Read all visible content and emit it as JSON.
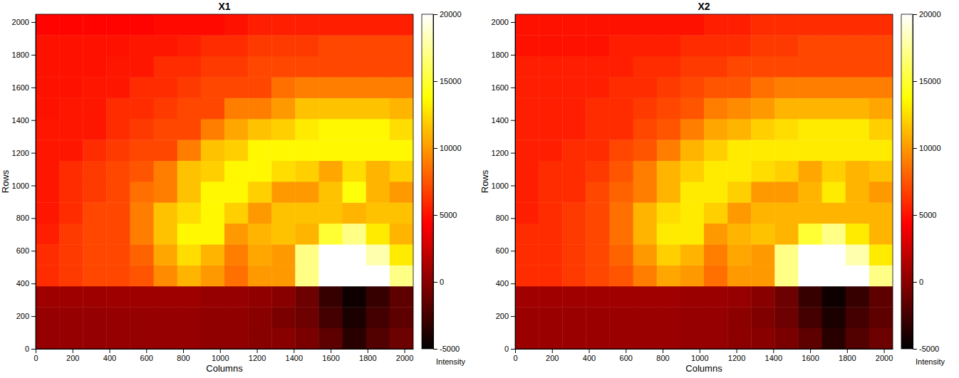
{
  "chart_data": [
    {
      "type": "heatmap",
      "title": "X1",
      "x_label": "Columns",
      "y_label": "Rows",
      "x": [
        0,
        128,
        256,
        384,
        512,
        640,
        768,
        896,
        1024,
        1152,
        1280,
        1408,
        1536,
        1664,
        1792,
        1920,
        2048
      ],
      "y": [
        0,
        128,
        256,
        384,
        512,
        640,
        768,
        896,
        1024,
        1152,
        1280,
        1408,
        1536,
        1664,
        1792,
        1920,
        2048
      ],
      "xlim": [
        0,
        2048
      ],
      "ylim": [
        0,
        2048
      ],
      "xticks": [
        0,
        200,
        400,
        600,
        800,
        1000,
        1200,
        1400,
        1600,
        1800,
        2000
      ],
      "yticks": [
        0,
        200,
        400,
        600,
        800,
        1000,
        1200,
        1400,
        1600,
        1800,
        2000
      ],
      "z": [
        [
          500,
          500,
          500,
          500,
          500,
          500,
          500,
          300,
          300,
          0,
          0,
          -500,
          -1500,
          -3500,
          -2000,
          -1000
        ],
        [
          500,
          500,
          500,
          500,
          500,
          500,
          500,
          300,
          300,
          0,
          -500,
          -1000,
          -2500,
          -4000,
          -2500,
          -1500
        ],
        [
          800,
          800,
          800,
          800,
          800,
          800,
          800,
          500,
          500,
          300,
          0,
          -1000,
          -3000,
          -4500,
          -3000,
          -1500
        ],
        [
          6000,
          6500,
          7000,
          7000,
          7500,
          9500,
          11000,
          10000,
          8500,
          10000,
          10000,
          17000,
          20000,
          20000,
          20000,
          17000
        ],
        [
          6000,
          6500,
          7000,
          7000,
          8000,
          10500,
          12500,
          11000,
          9000,
          10500,
          10000,
          17000,
          20000,
          20000,
          18000,
          13000
        ],
        [
          5500,
          6500,
          7000,
          7000,
          9000,
          11500,
          13500,
          13500,
          10000,
          11000,
          11500,
          11000,
          15000,
          17000,
          13000,
          11000
        ],
        [
          5200,
          6000,
          7000,
          7000,
          9000,
          11500,
          12500,
          13500,
          12000,
          10000,
          11500,
          11500,
          11500,
          11000,
          11500,
          11500
        ],
        [
          5200,
          6000,
          6500,
          7000,
          8500,
          9000,
          11500,
          13500,
          13500,
          12000,
          10000,
          10000,
          11500,
          14000,
          11000,
          10000
        ],
        [
          5200,
          6000,
          6500,
          7000,
          7500,
          9000,
          11500,
          12000,
          13500,
          13500,
          12500,
          12000,
          10500,
          12500,
          11000,
          12000
        ],
        [
          5200,
          5200,
          6000,
          6500,
          7000,
          7000,
          9000,
          11500,
          12000,
          13500,
          13500,
          13500,
          13500,
          13500,
          13500,
          13500
        ],
        [
          5200,
          5200,
          5200,
          6000,
          6500,
          7000,
          7000,
          9000,
          10500,
          11500,
          12000,
          13000,
          13500,
          13500,
          13500,
          12500
        ],
        [
          5000,
          5200,
          5200,
          6000,
          6000,
          6500,
          7000,
          7000,
          9000,
          9000,
          10000,
          11500,
          11500,
          11500,
          11500,
          11000
        ],
        [
          5000,
          5000,
          5200,
          5200,
          6000,
          6000,
          6500,
          7000,
          7000,
          7000,
          8500,
          9000,
          9000,
          9000,
          9000,
          9000
        ],
        [
          5000,
          5000,
          5000,
          5200,
          5200,
          6000,
          6000,
          6500,
          6500,
          7000,
          7000,
          7000,
          7000,
          7000,
          7000,
          7000
        ],
        [
          5000,
          5000,
          5000,
          5000,
          5200,
          5200,
          5500,
          6000,
          6000,
          6500,
          6500,
          6500,
          7000,
          7000,
          7000,
          7000
        ],
        [
          4500,
          4500,
          4500,
          4500,
          4500,
          4700,
          4700,
          4700,
          5000,
          5500,
          5500,
          5500,
          5500,
          5500,
          5500,
          5500
        ]
      ],
      "colorbar": {
        "label": "Intensity",
        "range": [
          -5000,
          20000
        ],
        "ticks": [
          -5000,
          0,
          5000,
          10000,
          15000,
          20000
        ]
      }
    },
    {
      "type": "heatmap",
      "title": "X2",
      "x_label": "Columns",
      "y_label": "Rows",
      "x": [
        0,
        128,
        256,
        384,
        512,
        640,
        768,
        896,
        1024,
        1152,
        1280,
        1408,
        1536,
        1664,
        1792,
        1920,
        2048
      ],
      "y": [
        0,
        128,
        256,
        384,
        512,
        640,
        768,
        896,
        1024,
        1152,
        1280,
        1408,
        1536,
        1664,
        1792,
        1920,
        2048
      ],
      "xlim": [
        0,
        2048
      ],
      "ylim": [
        0,
        2048
      ],
      "xticks": [
        0,
        200,
        400,
        600,
        800,
        1000,
        1200,
        1400,
        1600,
        1800,
        2000
      ],
      "yticks": [
        0,
        200,
        400,
        600,
        800,
        1000,
        1200,
        1400,
        1600,
        1800,
        2000
      ],
      "z": [
        [
          700,
          700,
          700,
          700,
          700,
          700,
          700,
          500,
          500,
          200,
          0,
          -500,
          -1500,
          -3500,
          -2000,
          -1000
        ],
        [
          700,
          700,
          700,
          700,
          700,
          700,
          700,
          500,
          500,
          200,
          -300,
          -1000,
          -2500,
          -4000,
          -2500,
          -1500
        ],
        [
          900,
          900,
          900,
          900,
          900,
          900,
          900,
          700,
          700,
          500,
          0,
          -1000,
          -3000,
          -4500,
          -3000,
          -1500
        ],
        [
          6000,
          6000,
          6500,
          7000,
          7500,
          9000,
          10500,
          10000,
          8500,
          10000,
          10000,
          17000,
          20000,
          20000,
          20000,
          17000
        ],
        [
          6000,
          6000,
          6500,
          7000,
          8000,
          10000,
          12000,
          11000,
          9000,
          10500,
          10000,
          17000,
          20000,
          20000,
          18000,
          13000
        ],
        [
          6000,
          6000,
          6500,
          7000,
          8500,
          11000,
          13000,
          13000,
          10000,
          11000,
          11500,
          11000,
          15000,
          17000,
          13000,
          11000
        ],
        [
          5500,
          6000,
          6500,
          7000,
          8500,
          11000,
          12500,
          13000,
          12000,
          10000,
          11000,
          11000,
          11000,
          11000,
          11000,
          11000
        ],
        [
          5500,
          6000,
          6000,
          7000,
          8000,
          9000,
          11000,
          13000,
          13000,
          12000,
          10000,
          10000,
          11000,
          13000,
          11000,
          10000
        ],
        [
          5500,
          6000,
          6000,
          6500,
          7500,
          9000,
          11000,
          12000,
          13000,
          13000,
          12500,
          12000,
          10500,
          12000,
          11000,
          11500
        ],
        [
          5500,
          5500,
          6000,
          6000,
          7000,
          7500,
          9000,
          11000,
          12000,
          13000,
          13000,
          13000,
          13000,
          13000,
          13000,
          13000
        ],
        [
          5500,
          5500,
          5500,
          6000,
          6000,
          7000,
          7500,
          9000,
          10500,
          11000,
          12000,
          12500,
          13000,
          13000,
          13000,
          12000
        ],
        [
          5500,
          5500,
          5500,
          6000,
          6000,
          6500,
          7000,
          7500,
          9000,
          9500,
          10000,
          11000,
          11000,
          11000,
          11000,
          10500
        ],
        [
          5500,
          5500,
          5500,
          5500,
          6000,
          6000,
          6500,
          7000,
          7500,
          7500,
          8500,
          9000,
          9000,
          9000,
          9000,
          9000
        ],
        [
          5500,
          5500,
          5500,
          5500,
          5500,
          6000,
          6000,
          6500,
          6500,
          7000,
          7000,
          7000,
          7000,
          7000,
          7000,
          7000
        ],
        [
          5000,
          5000,
          5000,
          5000,
          5500,
          5500,
          5500,
          6000,
          6000,
          6000,
          6500,
          6500,
          7000,
          7000,
          7000,
          7000
        ],
        [
          5000,
          5000,
          5000,
          5000,
          5000,
          5000,
          5000,
          5000,
          5500,
          5500,
          6000,
          6000,
          6000,
          6000,
          6000,
          6000
        ]
      ],
      "colorbar": {
        "label": "Intensity",
        "range": [
          -5000,
          20000
        ],
        "ticks": [
          -5000,
          0,
          5000,
          10000,
          15000,
          20000
        ]
      }
    }
  ]
}
